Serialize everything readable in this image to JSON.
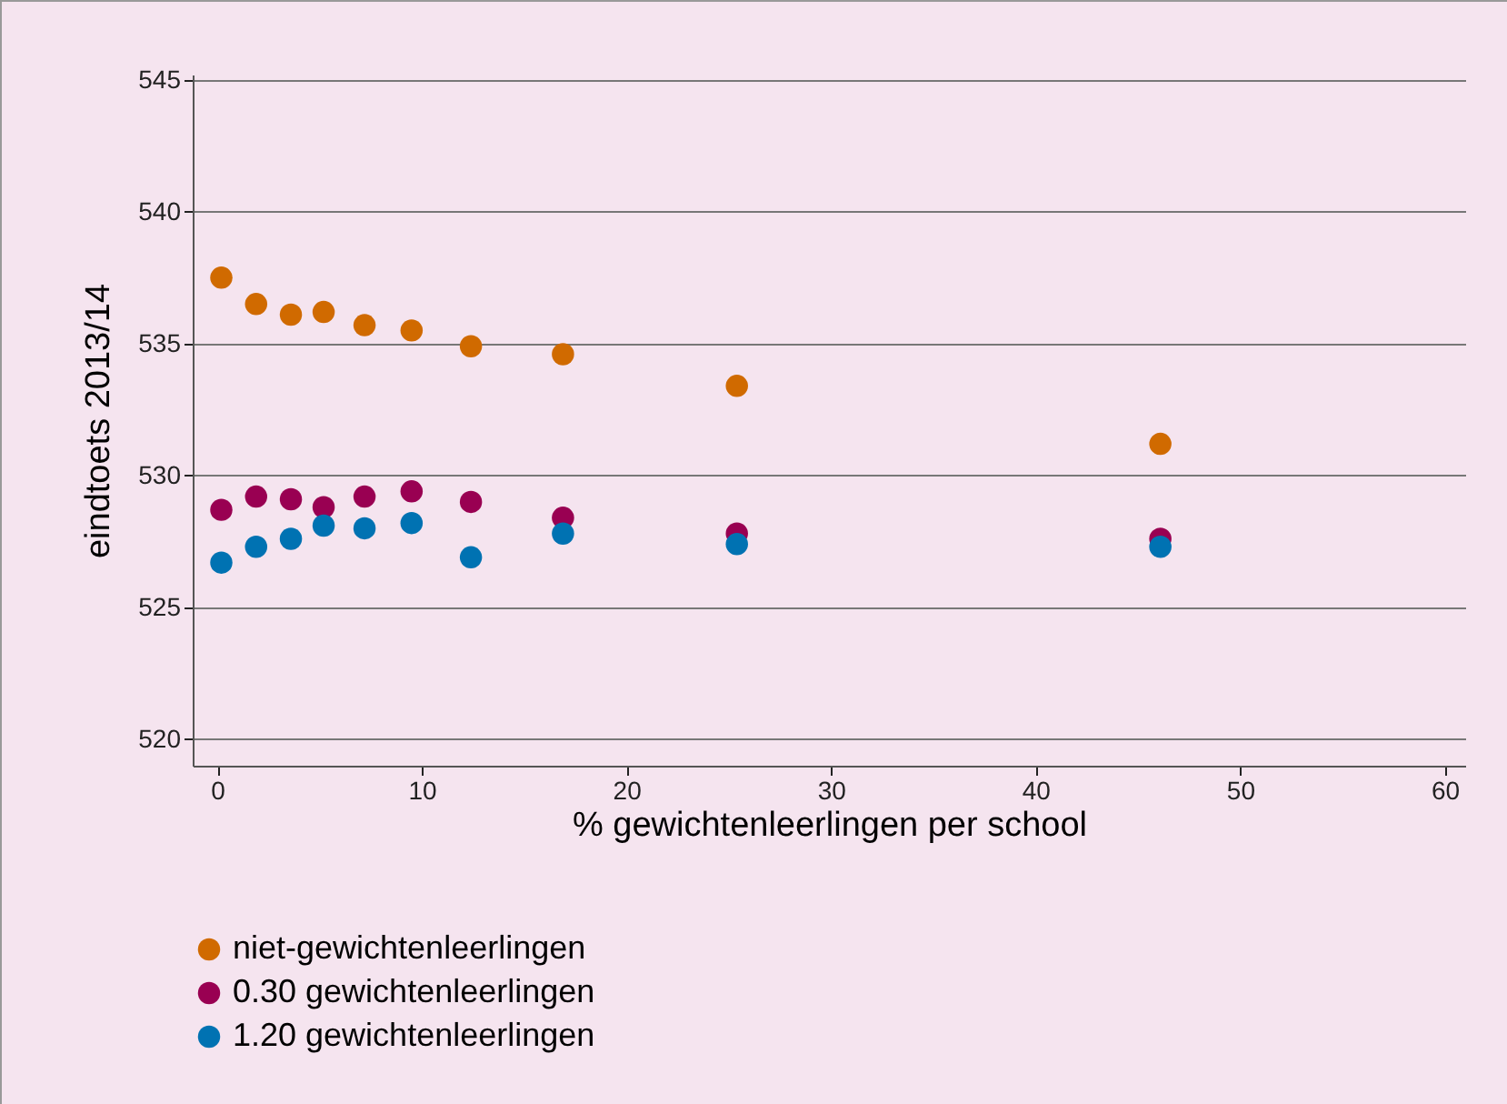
{
  "chart_data": {
    "type": "scatter",
    "xlabel": "% gewichtenleerlingen per school",
    "ylabel": "eindtoets 2013/14",
    "x": [
      0.2,
      1.9,
      3.6,
      5.2,
      7.2,
      9.5,
      12.4,
      16.9,
      25.4,
      46.1
    ],
    "series": [
      {
        "name": "niet-gewichtenleerlingen",
        "color": "#d06a00",
        "values": [
          537.5,
          536.5,
          536.1,
          536.2,
          535.7,
          535.5,
          534.9,
          534.6,
          533.4,
          531.2
        ]
      },
      {
        "name": "0.30 gewichtenleerlingen",
        "color": "#990052",
        "values": [
          528.7,
          529.2,
          529.1,
          528.8,
          529.2,
          529.4,
          529.0,
          528.4,
          527.8,
          527.6
        ]
      },
      {
        "name": "1.20 gewichtenleerlingen",
        "color": "#0072b2",
        "values": [
          526.7,
          527.3,
          527.6,
          528.1,
          528.0,
          528.2,
          526.9,
          527.8,
          527.4,
          527.3
        ]
      }
    ],
    "xlim": [
      -1.2,
      61
    ],
    "xticks": [
      0,
      10,
      20,
      30,
      40,
      50,
      60
    ],
    "ylim": [
      519,
      545.2
    ],
    "yticks": [
      520,
      525,
      530,
      535,
      540,
      545
    ],
    "grid": "y",
    "legend": "bottom",
    "marker": "circle"
  }
}
